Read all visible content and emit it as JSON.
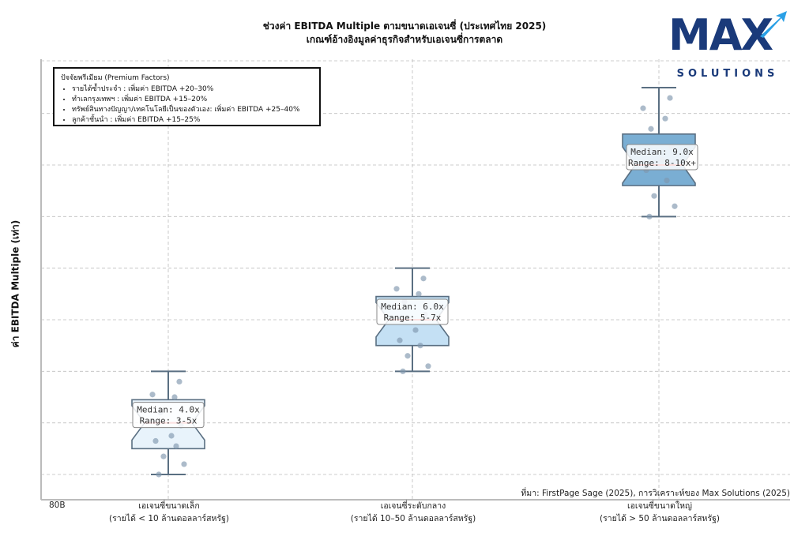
{
  "title": "ช่วงค่า EBITDA Multiple ตามขนาดเอเจนซี่ (ประเทศไทย 2025)",
  "subtitle": "เกณฑ์อ้างอิงมูลค่าธุรกิจสำหรับเอเจนซี่การตลาด",
  "logo": {
    "main": "MAX",
    "sub": "SOLUTIONS"
  },
  "source": "ที่มา: FirstPage Sage (2025), การวิเคราะห์ของ Max Solutions (2025)",
  "x_tick_left": "80B",
  "legend": {
    "title": "ปัจจัยพรีเมียม (Premium Factors)",
    "items": [
      "รายได้ซ้ำประจำ : เพิ่มค่า EBITDA +20–30%",
      "ทำเลกรุงเทพฯ : เพิ่มค่า EBITDA +15–20%",
      "ทรัพย์สินทางปัญญา/เทคโนโลยีเป็นของตัวเอง: เพิ่มค่า EBITDA +25–40%",
      "ลูกค้าชั้นนำ : เพิ่มค่า EBITDA +15–25%"
    ]
  },
  "chart_data": {
    "type": "box",
    "title": "ช่วงค่า EBITDA Multiple ตามขนาดเอเจนซี่ (ประเทศไทย 2025)",
    "subtitle": "เกณฑ์อ้างอิงมูลค่าธุรกิจสำหรับเอเจนซี่การตลาด",
    "ylabel": "ค่า EBITDA Multiple (เท่า)",
    "ylim": [
      2.5,
      11
    ],
    "grid": true,
    "categories": [
      {
        "line1": "เอเจนซี่ขนาดเล็ก",
        "line2": "(รายได้ < 10 ล้านดอลลาร์สหรัฐ)"
      },
      {
        "line1": "เอเจนซี่ระดับกลาง",
        "line2": "(รายได้ 10–50 ล้านดอลลาร์สหรัฐ)"
      },
      {
        "line1": "เอเจนซี่ขนาดใหญ่",
        "line2": "(รายได้ > 50 ล้านดอลลาร์สหรัฐ)"
      }
    ],
    "boxes": [
      {
        "min": 3.0,
        "q1": 3.5,
        "median": 4.0,
        "q3": 4.45,
        "max": 5.0,
        "label_median": "Median: 4.0x",
        "label_range": "Range: 3-5x",
        "color": "#e8f3fb",
        "points": [
          3.0,
          3.2,
          3.35,
          3.55,
          3.65,
          3.75,
          3.95,
          4.2,
          4.5,
          4.55,
          4.8
        ]
      },
      {
        "min": 5.0,
        "q1": 5.5,
        "median": 6.0,
        "q3": 6.45,
        "max": 7.0,
        "label_median": "Median: 6.0x",
        "label_range": "Range: 5-7x",
        "color": "#c4e0f4",
        "points": [
          5.0,
          5.1,
          5.3,
          5.5,
          5.6,
          5.8,
          6.1,
          6.35,
          6.5,
          6.6,
          6.8
        ]
      },
      {
        "min": 8.0,
        "q1": 8.6,
        "median": 9.0,
        "q3": 9.6,
        "max": 10.5,
        "label_median": "Median: 9.0x",
        "label_range": "Range: 8-10x+",
        "color": "#7aaed3",
        "points": [
          8.0,
          8.2,
          8.4,
          8.7,
          8.9,
          9.1,
          9.35,
          9.7,
          9.9,
          10.1,
          10.3
        ]
      }
    ]
  }
}
